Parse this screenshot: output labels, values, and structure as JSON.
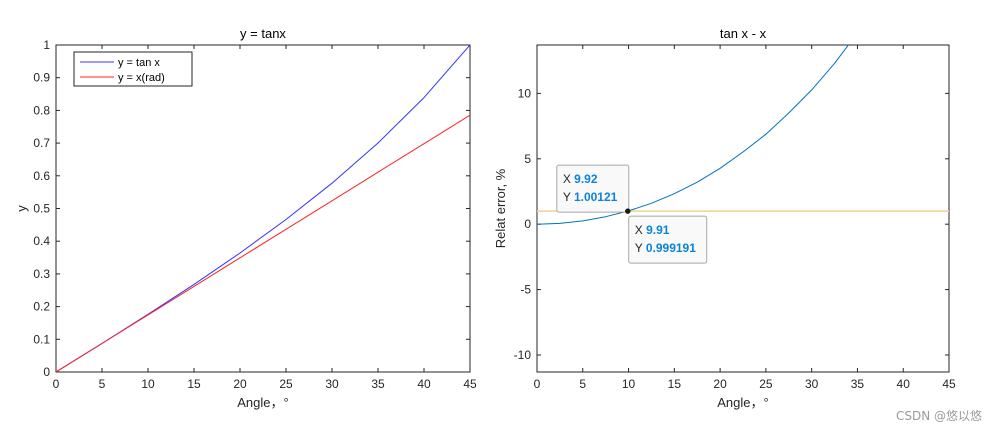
{
  "watermark": "CSDN @悠以悠",
  "chart_data": [
    {
      "type": "line",
      "title": "y = tanx",
      "xlabel": "Angle，°",
      "ylabel": "y",
      "xlim": [
        0,
        45
      ],
      "ylim": [
        0,
        1
      ],
      "xticks": [
        "0",
        "5",
        "10",
        "15",
        "20",
        "25",
        "30",
        "35",
        "40",
        "45"
      ],
      "yticks": [
        "0",
        "0.1",
        "0.2",
        "0.3",
        "0.4",
        "0.5",
        "0.6",
        "0.7",
        "0.8",
        "0.9",
        "1"
      ],
      "grid": false,
      "legend_position": "top-left",
      "x": [
        0,
        5,
        10,
        15,
        20,
        25,
        30,
        35,
        40,
        45
      ],
      "series": [
        {
          "name": "y = tan x",
          "color": "#3333ff",
          "values": [
            0,
            0.0875,
            0.1763,
            0.2679,
            0.364,
            0.4663,
            0.5774,
            0.7002,
            0.8391,
            1.0
          ]
        },
        {
          "name": "y = x(rad)",
          "color": "#ff2222",
          "values": [
            0,
            0.0873,
            0.1745,
            0.2618,
            0.3491,
            0.4363,
            0.5236,
            0.6109,
            0.6981,
            0.7854
          ]
        }
      ]
    },
    {
      "type": "line",
      "title": "tan x - x",
      "xlabel": "Angle，°",
      "ylabel": "Relat error, %",
      "xlim": [
        0,
        45
      ],
      "ylim": [
        -11.3,
        13.7
      ],
      "xticks": [
        "0",
        "5",
        "10",
        "15",
        "20",
        "25",
        "30",
        "35",
        "40",
        "45"
      ],
      "yticks": [
        "-10",
        "-5",
        "0",
        "5",
        "10"
      ],
      "ytick_values": [
        -10,
        -5,
        0,
        5,
        10
      ],
      "grid": false,
      "x": [
        0,
        2.5,
        5,
        7.5,
        10,
        12.5,
        15,
        17.5,
        20,
        22.5,
        25,
        27.5,
        30,
        32.5,
        35,
        36.7
      ],
      "series": [
        {
          "name": "",
          "color": "#0072bd",
          "values": [
            0,
            0.06,
            0.25,
            0.57,
            1.02,
            1.6,
            2.33,
            3.21,
            4.27,
            5.52,
            6.88,
            8.5,
            10.27,
            12.3,
            14.62,
            16.4
          ]
        },
        {
          "name": "",
          "color": "#f0d090",
          "constant": 1
        }
      ],
      "annotations": [
        {
          "x_label": "X",
          "x_value": "9.92",
          "y_label": "Y",
          "y_value": "1.00121",
          "x": 9.92,
          "y": 1.00121,
          "placement": "above-left"
        },
        {
          "x_label": "X",
          "x_value": "9.91",
          "y_label": "Y",
          "y_value": "0.999191",
          "x": 9.91,
          "y": 0.999191,
          "placement": "below-right"
        }
      ]
    }
  ]
}
